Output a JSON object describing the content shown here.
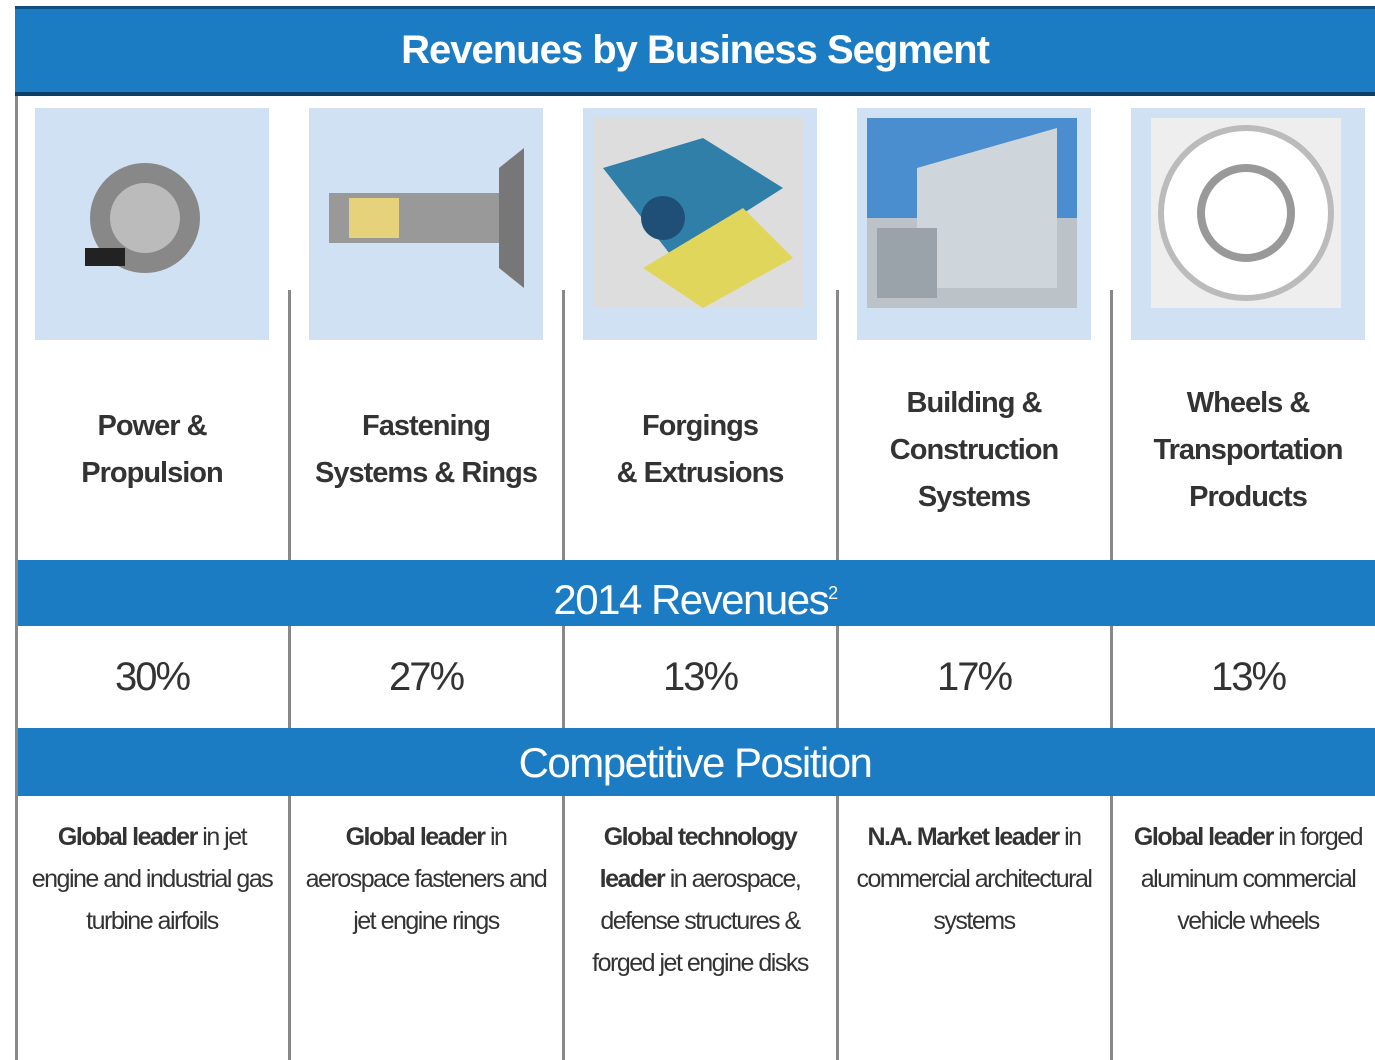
{
  "title": "Revenues by Business Segment",
  "revenues_header": {
    "text": "2014 Revenues",
    "note": "2"
  },
  "position_header": "Competitive Position",
  "segments": [
    {
      "name_lines": [
        "Power &",
        "Propulsion"
      ],
      "revenue": "30%",
      "position_lead": "Global leader",
      "position_text": "in jet engine and industrial gas turbine airfoils"
    },
    {
      "name_lines": [
        "Fastening",
        "Systems & Rings"
      ],
      "revenue": "27%",
      "position_lead": "Global leader",
      "position_text": "in aerospace fasteners and jet engine rings"
    },
    {
      "name_lines": [
        "Forgings",
        "& Extrusions"
      ],
      "revenue": "13%",
      "position_lead": "Global technology leader",
      "position_text": "in aerospace, defense structures & forged jet engine disks"
    },
    {
      "name_lines": [
        "Building &",
        "Construction",
        "Systems"
      ],
      "revenue": "17%",
      "position_lead": "N.A. Market leader",
      "position_text": "in commercial architectural systems"
    },
    {
      "name_lines": [
        "Wheels &",
        "Transportation",
        "Products"
      ],
      "revenue": "13%",
      "position_lead": "Global leader",
      "position_text": "in forged aluminum commercial vehicle wheels"
    }
  ]
}
